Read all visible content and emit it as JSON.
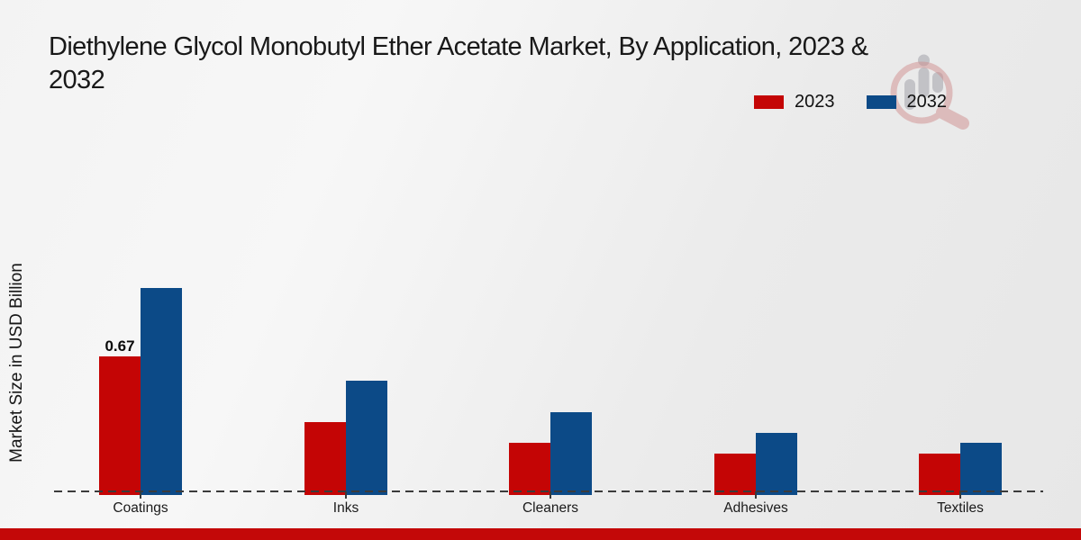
{
  "header": {
    "title_line1": "Diethylene Glycol Monobutyl Ether Acetate Market, By Application, 2023 &",
    "title_line2": "2032"
  },
  "chart_data": {
    "type": "bar",
    "title": "Diethylene Glycol Monobutyl Ether Acetate Market, By Application, 2023 & 2032",
    "xlabel": "",
    "ylabel": "Market Size in USD Billion",
    "categories": [
      "Coatings",
      "Inks",
      "Cleaners",
      "Adhesives",
      "Textiles"
    ],
    "series": [
      {
        "name": "2023",
        "color": "#c40505",
        "values": [
          0.67,
          0.35,
          0.25,
          0.2,
          0.2
        ]
      },
      {
        "name": "2032",
        "color": "#0c4a87",
        "values": [
          1.0,
          0.55,
          0.4,
          0.3,
          0.25
        ]
      }
    ],
    "annotations": [
      {
        "category": "Coatings",
        "series": "2023",
        "text": "0.67"
      }
    ],
    "ylim": [
      0,
      1.15
    ],
    "grid": "off",
    "axis_style": "dashed-zero-baseline",
    "legend_position": "top-right"
  },
  "watermark": {
    "name": "market-research-magnifier-logo"
  },
  "footer": {
    "bar_color": "#c30808"
  },
  "colors": {
    "background_light": "#f7f7f7",
    "background_dark": "#e7e7e7",
    "baseline": "#3b3b3b",
    "text": "#1a1a1a"
  }
}
